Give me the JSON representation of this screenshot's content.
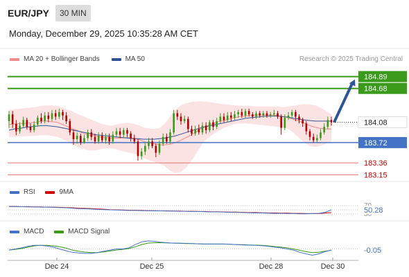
{
  "header": {
    "pair": "EUR/JPY",
    "timeframe": "30 MIN",
    "datetime": "Monday, December 29, 2025 10:35:28 AM CET"
  },
  "legend": {
    "ma20_label": "MA 20 + Bollinger Bands",
    "ma20_color": "#f28b8b",
    "ma50_label": "MA 50",
    "ma50_color": "#2f5597",
    "credit": "Research © 2025 Trading Central"
  },
  "rsi_legend": {
    "rsi_label": "RSI",
    "rsi_color": "#4472c4",
    "ma_label": "9MA",
    "ma_color": "#d00000"
  },
  "macd_legend": {
    "macd_label": "MACD",
    "macd_color": "#4472c4",
    "signal_label": "MACD Signal",
    "signal_color": "#3a9a1a"
  },
  "chart_data": {
    "type": "candlestick",
    "x_tick_labels": [
      "Dec 24",
      "Dec 25",
      "Dec 28",
      "Dec 30"
    ],
    "price_range": [
      183.08,
      185.02
    ],
    "last_price": 184.08,
    "levels": [
      {
        "value": 184.89,
        "label": "184.89",
        "kind": "resistance",
        "color": "#3a9a1a"
      },
      {
        "value": 184.68,
        "label": "184.68",
        "kind": "resistance",
        "color": "#3a9a1a"
      },
      {
        "value": 183.72,
        "label": "183.72",
        "kind": "pivot",
        "color": "#4472c4"
      },
      {
        "value": 183.36,
        "label": "183.36",
        "kind": "support",
        "color": "#e06060"
      },
      {
        "value": 183.15,
        "label": "183.15",
        "kind": "support",
        "color": "#e06060"
      }
    ],
    "last_price_label": "184.08",
    "candles": [
      [
        184.1,
        184.22,
        184.28,
        183.98
      ],
      [
        184.22,
        184.05,
        184.28,
        183.98
      ],
      [
        184.05,
        183.92,
        184.12,
        183.85
      ],
      [
        183.92,
        184.02,
        184.08,
        183.88
      ],
      [
        184.02,
        184.12,
        184.18,
        183.98
      ],
      [
        184.12,
        184.0,
        184.16,
        183.95
      ],
      [
        184.0,
        183.94,
        184.06,
        183.9
      ],
      [
        183.94,
        184.04,
        184.1,
        183.9
      ],
      [
        184.04,
        184.16,
        184.2,
        184.0
      ],
      [
        184.16,
        184.1,
        184.24,
        184.06
      ],
      [
        184.1,
        184.2,
        184.26,
        184.06
      ],
      [
        184.2,
        184.14,
        184.26,
        184.08
      ],
      [
        184.14,
        184.24,
        184.3,
        184.1
      ],
      [
        184.24,
        184.18,
        184.3,
        184.12
      ],
      [
        184.18,
        184.26,
        184.32,
        184.14
      ],
      [
        184.26,
        184.2,
        184.3,
        184.12
      ],
      [
        184.2,
        184.1,
        184.26,
        184.05
      ],
      [
        184.1,
        183.9,
        184.14,
        183.85
      ],
      [
        183.9,
        183.78,
        183.95,
        183.68
      ],
      [
        183.78,
        183.84,
        183.9,
        183.7
      ],
      [
        183.84,
        183.72,
        183.88,
        183.68
      ],
      [
        183.72,
        183.8,
        183.86,
        183.7
      ],
      [
        183.8,
        183.9,
        183.95,
        183.75
      ],
      [
        183.9,
        183.82,
        183.96,
        183.76
      ],
      [
        183.82,
        183.74,
        183.88,
        183.7
      ],
      [
        183.74,
        183.84,
        183.9,
        183.7
      ],
      [
        183.84,
        183.76,
        183.9,
        183.72
      ],
      [
        183.76,
        183.82,
        183.88,
        183.7
      ],
      [
        183.82,
        183.74,
        183.88,
        183.68
      ],
      [
        183.74,
        183.86,
        183.92,
        183.7
      ],
      [
        183.86,
        183.92,
        183.98,
        183.82
      ],
      [
        183.92,
        183.86,
        183.98,
        183.8
      ],
      [
        183.86,
        183.94,
        183.98,
        183.8
      ],
      [
        183.94,
        183.88,
        183.98,
        183.82
      ],
      [
        183.88,
        183.8,
        183.92,
        183.74
      ],
      [
        183.8,
        183.74,
        183.86,
        183.7
      ],
      [
        183.74,
        183.48,
        183.78,
        183.4
      ],
      [
        183.48,
        183.56,
        183.62,
        183.42
      ],
      [
        183.56,
        183.66,
        183.72,
        183.5
      ],
      [
        183.66,
        183.74,
        183.8,
        183.6
      ],
      [
        183.74,
        183.66,
        183.8,
        183.62
      ],
      [
        183.66,
        183.54,
        183.7,
        183.46
      ],
      [
        183.54,
        183.7,
        183.76,
        183.5
      ],
      [
        183.7,
        183.82,
        183.88,
        183.66
      ],
      [
        183.82,
        183.74,
        183.88,
        183.7
      ],
      [
        183.74,
        183.9,
        183.96,
        183.7
      ],
      [
        183.9,
        184.24,
        184.3,
        183.86
      ],
      [
        184.24,
        184.18,
        184.3,
        184.12
      ],
      [
        184.18,
        184.1,
        184.24,
        184.04
      ],
      [
        184.1,
        184.14,
        184.2,
        184.06
      ],
      [
        184.14,
        183.96,
        184.18,
        183.9
      ],
      [
        183.96,
        183.88,
        184.02,
        183.84
      ],
      [
        183.88,
        183.96,
        184.02,
        183.84
      ],
      [
        183.96,
        183.9,
        184.04,
        183.86
      ],
      [
        183.9,
        184.02,
        184.08,
        183.86
      ],
      [
        184.02,
        183.94,
        184.08,
        183.88
      ],
      [
        183.94,
        184.08,
        184.12,
        183.9
      ],
      [
        184.08,
        184.0,
        184.12,
        183.94
      ],
      [
        184.0,
        184.1,
        184.16,
        183.96
      ],
      [
        184.1,
        184.18,
        184.24,
        184.06
      ],
      [
        184.18,
        184.12,
        184.24,
        184.08
      ],
      [
        184.12,
        184.2,
        184.26,
        184.08
      ],
      [
        184.2,
        184.16,
        184.26,
        184.1
      ],
      [
        184.16,
        184.22,
        184.28,
        184.12
      ],
      [
        184.22,
        184.26,
        184.3,
        184.16
      ],
      [
        184.26,
        184.2,
        184.32,
        184.16
      ],
      [
        184.2,
        184.28,
        184.32,
        184.16
      ],
      [
        184.28,
        184.22,
        184.32,
        184.18
      ],
      [
        184.22,
        184.18,
        184.26,
        184.14
      ],
      [
        184.18,
        184.24,
        184.28,
        184.14
      ],
      [
        184.24,
        184.2,
        184.28,
        184.16
      ],
      [
        184.2,
        184.24,
        184.28,
        184.16
      ],
      [
        184.24,
        184.2,
        184.28,
        184.16
      ],
      [
        184.2,
        184.22,
        184.26,
        184.16
      ],
      [
        184.22,
        184.24,
        184.3,
        184.18
      ],
      [
        184.24,
        184.18,
        184.28,
        184.14
      ],
      [
        184.18,
        183.98,
        184.22,
        183.86
      ],
      [
        183.98,
        184.16,
        184.22,
        183.94
      ],
      [
        184.16,
        184.2,
        184.26,
        184.12
      ],
      [
        184.2,
        184.26,
        184.3,
        184.16
      ],
      [
        184.26,
        184.18,
        184.3,
        184.1
      ],
      [
        184.18,
        184.12,
        184.22,
        184.06
      ],
      [
        184.12,
        184.06,
        184.16,
        184.0
      ],
      [
        184.06,
        183.92,
        184.1,
        183.86
      ],
      [
        183.92,
        183.82,
        183.96,
        183.76
      ],
      [
        183.82,
        183.76,
        183.88,
        183.72
      ],
      [
        183.76,
        183.8,
        183.86,
        183.72
      ],
      [
        183.8,
        183.9,
        183.96,
        183.76
      ],
      [
        183.9,
        184.0,
        184.06,
        183.86
      ],
      [
        184.0,
        184.12,
        184.18,
        183.96
      ],
      [
        184.12,
        184.08,
        184.18,
        184.02
      ]
    ],
    "ma20": [
      184.04,
      184.05,
      184.06,
      184.06,
      184.07,
      184.08,
      184.1,
      184.1,
      184.09,
      184.08,
      184.04,
      184.0,
      183.96,
      183.92,
      183.88,
      183.85,
      183.84,
      183.82,
      183.81,
      183.8,
      183.8,
      183.8,
      183.81,
      183.8,
      183.78,
      183.74,
      183.72,
      183.7,
      183.68,
      183.68,
      183.69,
      183.72,
      183.76,
      183.81,
      183.86,
      183.92,
      183.98,
      184.02,
      184.06,
      184.09,
      184.11,
      184.14,
      184.16,
      184.18,
      184.19,
      184.2,
      184.21,
      184.21,
      184.21,
      184.21,
      184.2,
      184.18,
      184.16,
      184.13,
      184.1,
      184.06,
      184.02,
      183.99,
      183.97,
      183.96,
      183.96
    ],
    "ma50": [
      183.94,
      183.96,
      183.97,
      183.99,
      184.0,
      184.01,
      184.02,
      184.02,
      184.01,
      184.0,
      183.98,
      183.96,
      183.94,
      183.92,
      183.9,
      183.88,
      183.86,
      183.85,
      183.84,
      183.83,
      183.82,
      183.81,
      183.8,
      183.79,
      183.79,
      183.78,
      183.78,
      183.78,
      183.79,
      183.8,
      183.82,
      183.84,
      183.87,
      183.9,
      183.93,
      183.96,
      183.99,
      184.01,
      184.03,
      184.05,
      184.07,
      184.09,
      184.11,
      184.13,
      184.15,
      184.16,
      184.17,
      184.18,
      184.19,
      184.19,
      184.19,
      184.18,
      184.17,
      184.15,
      184.14,
      184.12,
      184.11,
      184.1,
      184.1,
      184.1,
      184.1
    ],
    "bb_upper": [
      184.3,
      184.31,
      184.32,
      184.33,
      184.34,
      184.35,
      184.37,
      184.38,
      184.38,
      184.37,
      184.34,
      184.3,
      184.26,
      184.22,
      184.18,
      184.14,
      184.1,
      184.06,
      184.03,
      184.02,
      184.04,
      184.06,
      184.07,
      184.06,
      184.03,
      183.99,
      183.97,
      183.96,
      183.98,
      184.06,
      184.18,
      184.3,
      184.38,
      184.42,
      184.44,
      184.45,
      184.45,
      184.44,
      184.43,
      184.41,
      184.4,
      184.39,
      184.38,
      184.37,
      184.37,
      184.37,
      184.36,
      184.36,
      184.36,
      184.36,
      184.36,
      184.35,
      184.36,
      184.37,
      184.39,
      184.4,
      184.4,
      184.38,
      184.34,
      184.28,
      184.22
    ],
    "bb_lower": [
      183.82,
      183.82,
      183.83,
      183.83,
      183.84,
      183.84,
      183.85,
      183.85,
      183.84,
      183.82,
      183.78,
      183.73,
      183.68,
      183.63,
      183.6,
      183.58,
      183.58,
      183.6,
      183.62,
      183.62,
      183.6,
      183.57,
      183.55,
      183.53,
      183.5,
      183.45,
      183.41,
      183.38,
      183.35,
      183.3,
      183.22,
      183.18,
      183.2,
      183.28,
      183.4,
      183.55,
      183.7,
      183.8,
      183.87,
      183.93,
      183.98,
      184.02,
      184.05,
      184.06,
      184.06,
      184.05,
      184.04,
      184.03,
      184.02,
      184.01,
      184.0,
      183.99,
      183.96,
      183.89,
      183.8,
      183.72,
      183.66,
      183.64,
      183.66,
      183.7,
      183.74
    ],
    "projection": {
      "from": 184.08,
      "to": 184.89
    },
    "rsi": {
      "ticks": [
        "70",
        "30"
      ],
      "last_label": "50.28",
      "range": [
        0,
        100
      ],
      "rsi_values": [
        66,
        66,
        65,
        64,
        64,
        63,
        63,
        62,
        61,
        60,
        58,
        56,
        55,
        54,
        52,
        51,
        50,
        49,
        48,
        47,
        47,
        46,
        46,
        45,
        45,
        44,
        44,
        43,
        43,
        42,
        42,
        41,
        40,
        40,
        39,
        38,
        38,
        37,
        36,
        35,
        35,
        34,
        33,
        33,
        32,
        32,
        31,
        31,
        32,
        33,
        38,
        50
      ],
      "ma_values": [
        66,
        66,
        65,
        65,
        64,
        64,
        63,
        63,
        62,
        61,
        60,
        58,
        57,
        56,
        54,
        53,
        51,
        50,
        49,
        48,
        48,
        47,
        46,
        46,
        45,
        45,
        44,
        44,
        43,
        43,
        42,
        42,
        41,
        41,
        40,
        39,
        39,
        38,
        37,
        37,
        36,
        35,
        35,
        34,
        34,
        33,
        33,
        32,
        32,
        32,
        34,
        37
      ]
    },
    "macd": {
      "last_label": "-0.05",
      "range": [
        -0.45,
        0.45
      ],
      "macd_values": [
        -0.05,
        0.0,
        0.05,
        0.12,
        0.16,
        0.16,
        0.13,
        0.08,
        0.0,
        -0.08,
        -0.15,
        -0.18,
        -0.2,
        -0.2,
        -0.16,
        -0.1,
        -0.05,
        0.0,
        0.0,
        0.05,
        0.2,
        0.32,
        0.36,
        0.34,
        0.3,
        0.28,
        0.26,
        0.26,
        0.25,
        0.24,
        0.23,
        0.22,
        0.22,
        0.22,
        0.22,
        0.21,
        0.2,
        0.18,
        0.17,
        0.16,
        0.15,
        0.12,
        0.08,
        0.05,
        0.0,
        -0.05,
        -0.15,
        -0.22,
        -0.28,
        -0.22,
        -0.12,
        -0.05
      ],
      "signal_values": [
        -0.05,
        -0.02,
        0.02,
        0.08,
        0.14,
        0.16,
        0.16,
        0.14,
        0.1,
        0.04,
        -0.05,
        -0.1,
        -0.14,
        -0.16,
        -0.16,
        -0.13,
        -0.09,
        -0.05,
        -0.02,
        0.02,
        0.1,
        0.2,
        0.26,
        0.28,
        0.28,
        0.27,
        0.26,
        0.25,
        0.24,
        0.24,
        0.23,
        0.22,
        0.22,
        0.22,
        0.22,
        0.21,
        0.2,
        0.19,
        0.18,
        0.17,
        0.16,
        0.14,
        0.11,
        0.08,
        0.05,
        0.0,
        -0.06,
        -0.12,
        -0.16,
        -0.15,
        -0.1,
        -0.06
      ]
    }
  }
}
